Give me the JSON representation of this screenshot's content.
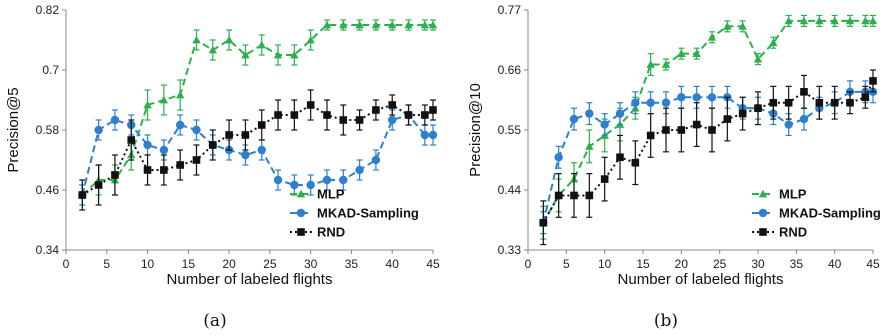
{
  "chart_data": [
    {
      "type": "line",
      "caption": "(a)",
      "xlabel": "Number of labeled flights",
      "ylabel": "Precision@5",
      "xlim": [
        0,
        45
      ],
      "ylim": [
        0.34,
        0.82
      ],
      "xticks": [
        0,
        5,
        10,
        15,
        20,
        25,
        30,
        35,
        40,
        45
      ],
      "yticks": [
        0.34,
        0.46,
        0.58,
        0.7,
        0.82
      ],
      "ytick_labels": [
        "0.34",
        "0.46",
        "0.58",
        "0.7",
        "0.82"
      ],
      "legend_position": "bottom-right",
      "series": [
        {
          "name": "MLP",
          "color": "#2db04b",
          "marker": "triangle",
          "dash": "7,4",
          "x": [
            2,
            4,
            6,
            8,
            10,
            12,
            14,
            16,
            18,
            20,
            22,
            24,
            26,
            28,
            30,
            32,
            34,
            36,
            38,
            40,
            42,
            44,
            45
          ],
          "y": [
            0.45,
            0.48,
            0.48,
            0.53,
            0.63,
            0.64,
            0.65,
            0.76,
            0.74,
            0.76,
            0.73,
            0.75,
            0.73,
            0.73,
            0.76,
            0.79,
            0.79,
            0.79,
            0.79,
            0.79,
            0.79,
            0.79,
            0.79
          ],
          "err": [
            0.02,
            0.03,
            0.03,
            0.03,
            0.03,
            0.03,
            0.03,
            0.02,
            0.02,
            0.02,
            0.02,
            0.02,
            0.02,
            0.02,
            0.02,
            0.01,
            0.01,
            0.01,
            0.01,
            0.01,
            0.01,
            0.01,
            0.01
          ]
        },
        {
          "name": "MKAD-Sampling",
          "color": "#2e7fd0",
          "marker": "circle",
          "dash": "7,4",
          "x": [
            2,
            4,
            6,
            8,
            10,
            12,
            14,
            16,
            18,
            20,
            22,
            24,
            26,
            28,
            30,
            32,
            34,
            36,
            38,
            40,
            42,
            44,
            45
          ],
          "y": [
            0.45,
            0.58,
            0.6,
            0.59,
            0.55,
            0.54,
            0.59,
            0.58,
            0.55,
            0.54,
            0.53,
            0.54,
            0.48,
            0.47,
            0.47,
            0.48,
            0.48,
            0.5,
            0.52,
            0.6,
            0.61,
            0.57,
            0.57
          ],
          "err": [
            0.02,
            0.02,
            0.02,
            0.02,
            0.02,
            0.02,
            0.02,
            0.02,
            0.02,
            0.02,
            0.02,
            0.02,
            0.02,
            0.02,
            0.02,
            0.02,
            0.02,
            0.02,
            0.02,
            0.02,
            0.02,
            0.02,
            0.02
          ]
        },
        {
          "name": "RND",
          "color": "#111111",
          "marker": "square",
          "dash": "2,3",
          "x": [
            2,
            4,
            6,
            8,
            10,
            12,
            14,
            16,
            18,
            20,
            22,
            24,
            26,
            28,
            30,
            32,
            34,
            36,
            38,
            40,
            42,
            44,
            45
          ],
          "y": [
            0.45,
            0.47,
            0.49,
            0.56,
            0.5,
            0.5,
            0.51,
            0.52,
            0.55,
            0.57,
            0.57,
            0.59,
            0.61,
            0.61,
            0.63,
            0.61,
            0.6,
            0.6,
            0.62,
            0.63,
            0.61,
            0.61,
            0.62
          ],
          "err": [
            0.03,
            0.04,
            0.04,
            0.04,
            0.03,
            0.03,
            0.03,
            0.03,
            0.03,
            0.03,
            0.03,
            0.03,
            0.03,
            0.03,
            0.03,
            0.03,
            0.03,
            0.02,
            0.02,
            0.02,
            0.02,
            0.02,
            0.02
          ]
        }
      ]
    },
    {
      "type": "line",
      "caption": "(b)",
      "xlabel": "Number of labeled flights",
      "ylabel": "Precision@10",
      "xlim": [
        0,
        45
      ],
      "ylim": [
        0.33,
        0.77
      ],
      "xticks": [
        0,
        5,
        10,
        15,
        20,
        25,
        30,
        35,
        40,
        45
      ],
      "yticks": [
        0.33,
        0.44,
        0.55,
        0.66,
        0.77
      ],
      "ytick_labels": [
        "0.33",
        "0.44",
        "0.55",
        "0.66",
        "0.77"
      ],
      "legend_position": "bottom-right",
      "series": [
        {
          "name": "MLP",
          "color": "#2db04b",
          "marker": "triangle",
          "dash": "7,4",
          "x": [
            2,
            4,
            6,
            8,
            10,
            12,
            14,
            16,
            18,
            20,
            22,
            24,
            26,
            28,
            30,
            32,
            34,
            36,
            38,
            40,
            42,
            44,
            45
          ],
          "y": [
            0.38,
            0.43,
            0.46,
            0.52,
            0.54,
            0.56,
            0.59,
            0.67,
            0.67,
            0.69,
            0.69,
            0.72,
            0.74,
            0.74,
            0.68,
            0.71,
            0.75,
            0.75,
            0.75,
            0.75,
            0.75,
            0.75,
            0.75
          ],
          "err": [
            0.03,
            0.03,
            0.03,
            0.03,
            0.03,
            0.03,
            0.02,
            0.02,
            0.01,
            0.01,
            0.01,
            0.01,
            0.01,
            0.01,
            0.01,
            0.01,
            0.01,
            0.01,
            0.01,
            0.01,
            0.01,
            0.01,
            0.01
          ]
        },
        {
          "name": "MKAD-Sampling",
          "color": "#2e7fd0",
          "marker": "circle",
          "dash": "7,4",
          "x": [
            2,
            4,
            6,
            8,
            10,
            12,
            14,
            16,
            18,
            20,
            22,
            24,
            26,
            28,
            30,
            32,
            34,
            36,
            38,
            40,
            42,
            44,
            45
          ],
          "y": [
            0.38,
            0.5,
            0.57,
            0.58,
            0.56,
            0.58,
            0.6,
            0.6,
            0.6,
            0.61,
            0.61,
            0.61,
            0.61,
            0.59,
            0.59,
            0.58,
            0.56,
            0.57,
            0.59,
            0.6,
            0.62,
            0.62,
            0.62
          ],
          "err": [
            0.02,
            0.02,
            0.02,
            0.02,
            0.02,
            0.02,
            0.02,
            0.02,
            0.02,
            0.02,
            0.02,
            0.02,
            0.02,
            0.02,
            0.02,
            0.02,
            0.02,
            0.02,
            0.02,
            0.02,
            0.02,
            0.02,
            0.02
          ]
        },
        {
          "name": "RND",
          "color": "#111111",
          "marker": "square",
          "dash": "2,3",
          "x": [
            2,
            4,
            6,
            8,
            10,
            12,
            14,
            16,
            18,
            20,
            22,
            24,
            26,
            28,
            30,
            32,
            34,
            36,
            38,
            40,
            42,
            44,
            45
          ],
          "y": [
            0.38,
            0.43,
            0.43,
            0.43,
            0.46,
            0.5,
            0.49,
            0.54,
            0.55,
            0.55,
            0.56,
            0.55,
            0.57,
            0.58,
            0.59,
            0.6,
            0.6,
            0.62,
            0.6,
            0.6,
            0.6,
            0.61,
            0.64
          ],
          "err": [
            0.04,
            0.04,
            0.04,
            0.04,
            0.04,
            0.04,
            0.04,
            0.04,
            0.04,
            0.04,
            0.04,
            0.04,
            0.04,
            0.03,
            0.03,
            0.03,
            0.03,
            0.03,
            0.03,
            0.03,
            0.02,
            0.02,
            0.02
          ]
        }
      ]
    }
  ]
}
